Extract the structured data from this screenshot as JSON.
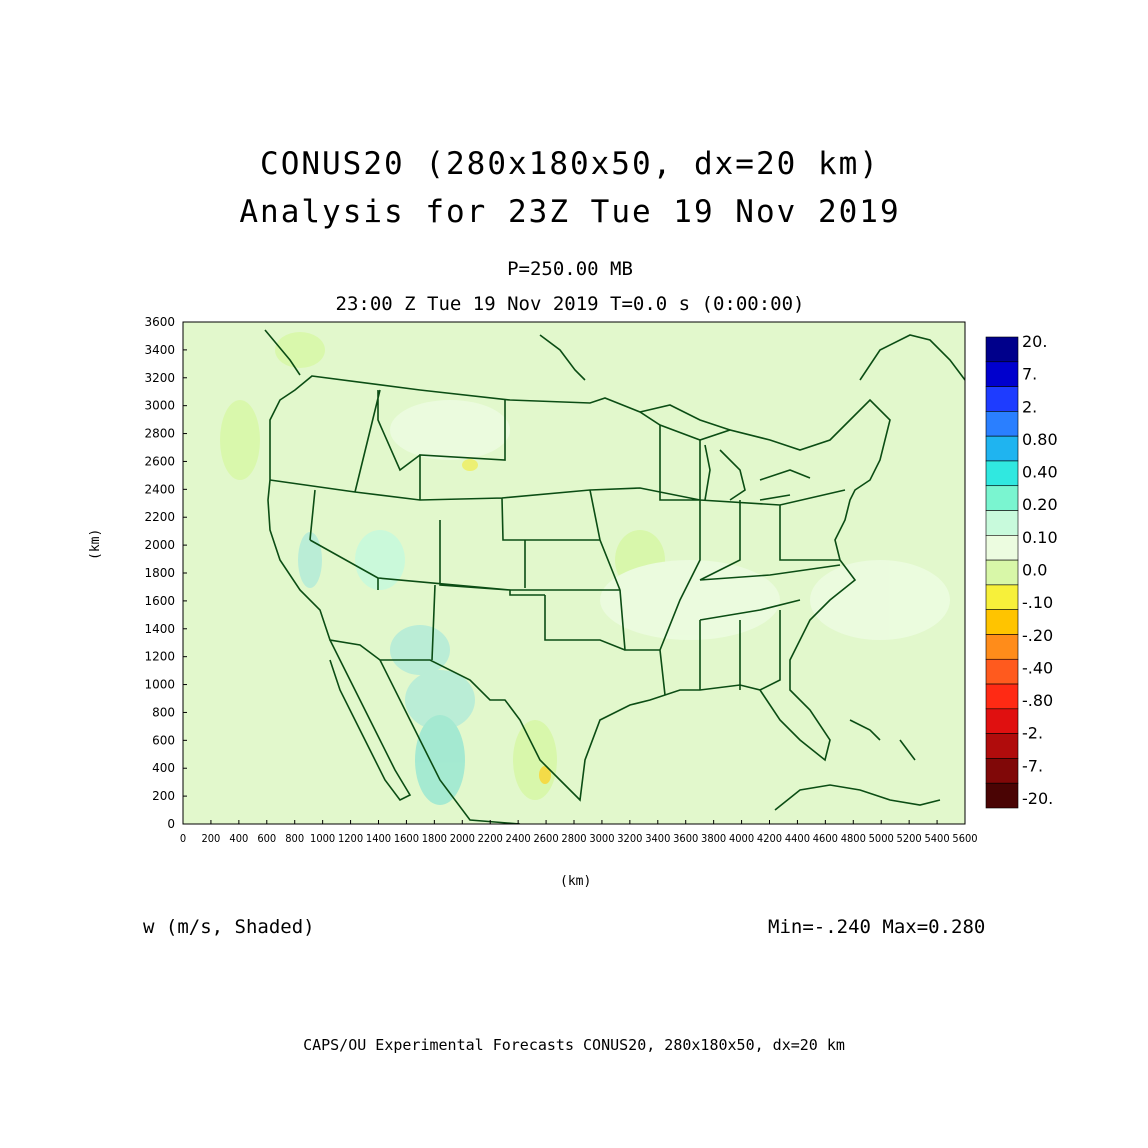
{
  "title": {
    "line1": "CONUS20 (280x180x50, dx=20 km)",
    "line2": "Analysis for 23Z Tue 19 Nov 2019"
  },
  "level_label": "P=250.00 MB",
  "valid_label": "23:00 Z Tue 19 Nov 2019    T=0.0 s (0:00:00)",
  "axes": {
    "x_label": "(km)",
    "y_label": "(km)",
    "x_ticks": [
      "0",
      "200",
      "400",
      "600",
      "800",
      "1000",
      "1200",
      "1400",
      "1600",
      "1800",
      "2000",
      "2200",
      "2400",
      "2600",
      "2800",
      "3000",
      "3200",
      "3400",
      "3600",
      "3800",
      "4000",
      "4200",
      "4400",
      "4600",
      "4800",
      "5000",
      "5200",
      "5400",
      "5600"
    ],
    "y_ticks": [
      "0",
      "200",
      "400",
      "600",
      "800",
      "1000",
      "1200",
      "1400",
      "1600",
      "1800",
      "2000",
      "2200",
      "2400",
      "2600",
      "2800",
      "3000",
      "3200",
      "3400",
      "3600"
    ],
    "x_range": [
      0,
      5600
    ],
    "y_range": [
      0,
      3600
    ]
  },
  "colorbar": {
    "labels": [
      "20.",
      "7.",
      "2.",
      "0.80",
      "0.40",
      "0.20",
      "0.10",
      "0.0",
      "-.10",
      "-.20",
      "-.40",
      "-.80",
      "-2.",
      "-7.",
      "-20."
    ],
    "colors": [
      "#00008b",
      "#0000cd",
      "#1e3cff",
      "#2a7fff",
      "#1fb4f0",
      "#30e8e0",
      "#7af5d0",
      "#c8fadc",
      "#ecfce0",
      "#d8f7a8",
      "#f7f03a",
      "#ffc400",
      "#ff8c1a",
      "#ff5a1e",
      "#ff2a14",
      "#e01010",
      "#b00c0c",
      "#800808",
      "#4a0404"
    ]
  },
  "variable_label": "w (m/s, Shaded)",
  "min_max": "Min=-.240 Max=0.280",
  "footer": "CAPS/OU Experimental Forecasts  CONUS20, 280x180x50, dx=20 km",
  "map_colors": {
    "background": "#e2f8cc",
    "boundaries": "#0b4d14"
  }
}
